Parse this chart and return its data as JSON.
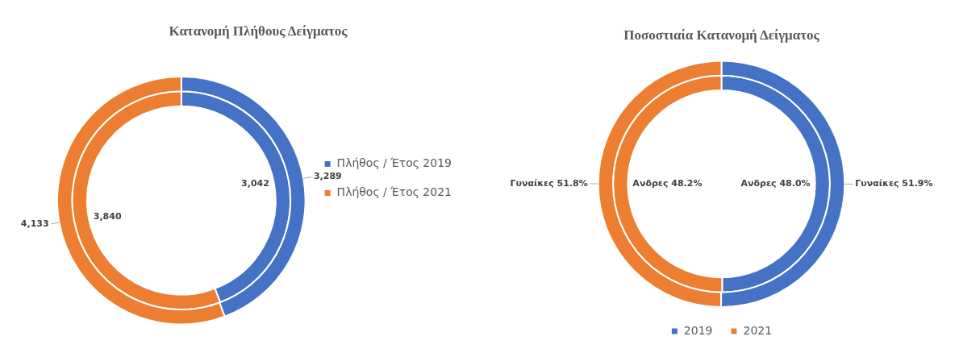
{
  "chart_data": [
    {
      "type": "donut",
      "title": "Κατανομή Πλήθους Δείγματος",
      "categories": [
        "Πλήθος / Έτος 2019",
        "Πλήθος / Έτος 2021"
      ],
      "legend": "right",
      "series": [
        {
          "colors": [
            "#4472c4",
            "#ed7d31"
          ],
          "values": [
            3289,
            4133
          ],
          "value_labels": [
            "3,289",
            "4,133"
          ]
        },
        {
          "colors": [
            "#4472c4",
            "#ed7d31"
          ],
          "values": [
            3042,
            3840
          ],
          "value_labels": [
            "3,042",
            "3,840"
          ]
        }
      ]
    },
    {
      "type": "donut",
      "title": "Ποσοστιαία Κατανομή Δείγματος",
      "categories": [
        "2019",
        "2021"
      ],
      "legend": "bottom",
      "series": [
        {
          "colors": [
            "#4472c4",
            "#ed7d31"
          ],
          "values": [
            51.9,
            51.8
          ],
          "value_labels": [
            "Γυναίκες 51.9%",
            "Γυναίκες 51.8%"
          ]
        },
        {
          "colors": [
            "#4472c4",
            "#ed7d31"
          ],
          "values": [
            48.0,
            48.2
          ],
          "value_labels": [
            "Ανδρες 48.0%",
            "Ανδρες 48.2%"
          ]
        }
      ]
    }
  ]
}
